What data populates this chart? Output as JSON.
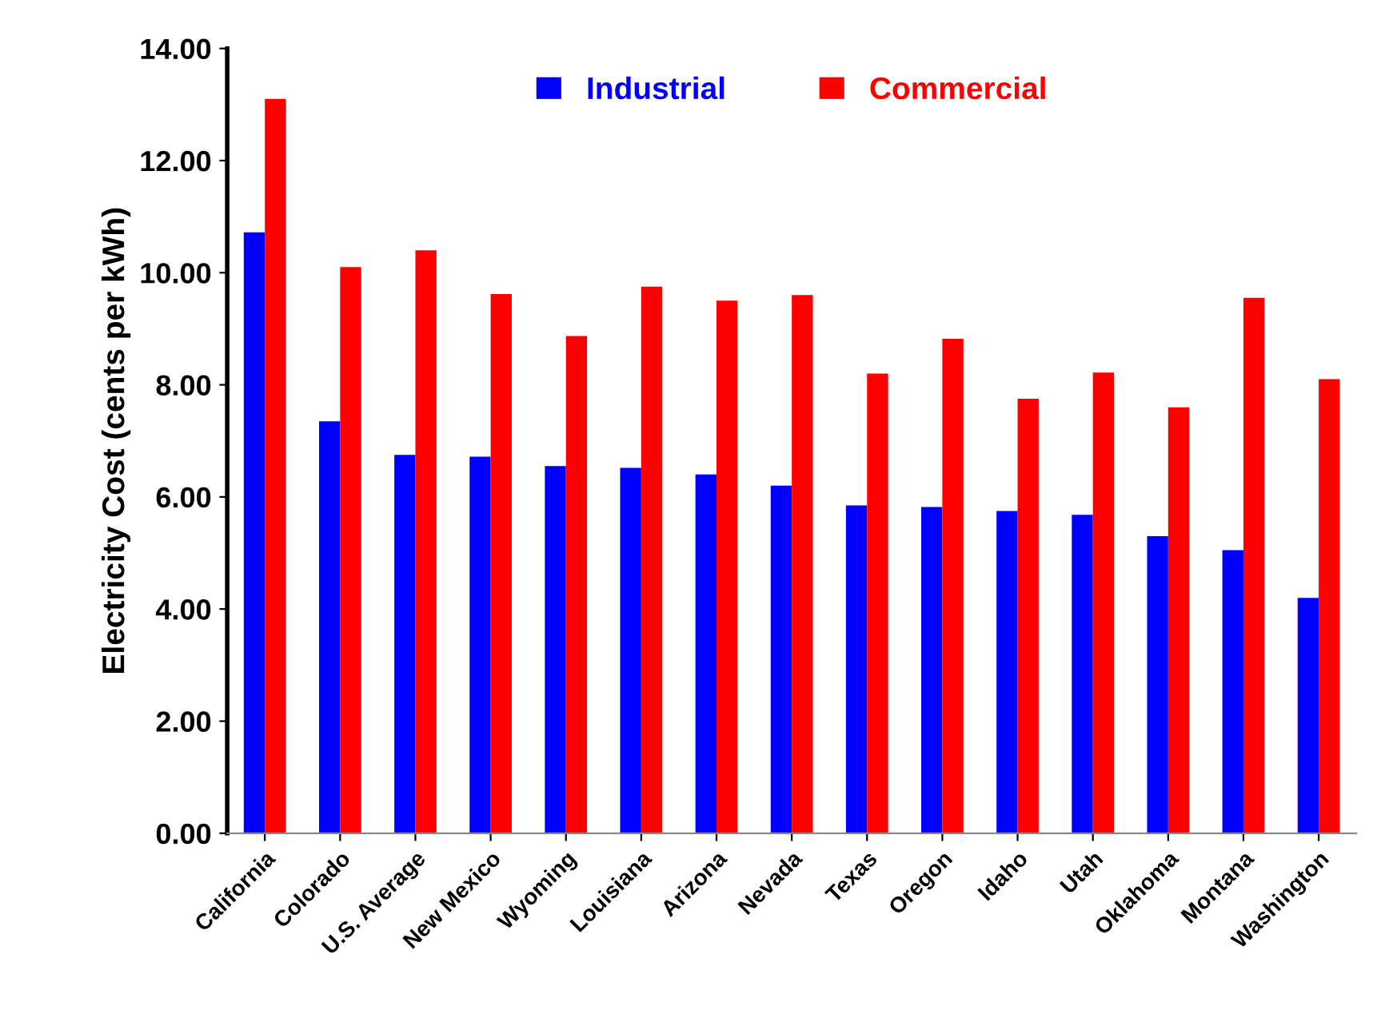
{
  "chart_data": {
    "type": "bar",
    "ylabel": "Electricity Cost (cents per kWh)",
    "categories": [
      "California",
      "Colorado",
      "U.S. Average",
      "New Mexico",
      "Wyoming",
      "Louisiana",
      "Arizona",
      "Nevada",
      "Texas",
      "Oregon",
      "Idaho",
      "Utah",
      "Oklahoma",
      "Montana",
      "Washington"
    ],
    "series": [
      {
        "name": "Industrial",
        "color": "#0000ff",
        "values": [
          10.72,
          7.35,
          6.75,
          6.72,
          6.55,
          6.52,
          6.4,
          6.2,
          5.85,
          5.82,
          5.75,
          5.68,
          5.3,
          5.05,
          4.2
        ]
      },
      {
        "name": "Commercial",
        "color": "#ff0000",
        "values": [
          13.1,
          10.1,
          10.4,
          9.62,
          8.87,
          9.75,
          9.5,
          9.6,
          8.2,
          8.82,
          7.75,
          8.22,
          7.6,
          9.55,
          8.1
        ]
      }
    ],
    "ylim": [
      0,
      14
    ],
    "yticks": [
      {
        "value": 0,
        "label": "0.00"
      },
      {
        "value": 2,
        "label": "2.00"
      },
      {
        "value": 4,
        "label": "4.00"
      },
      {
        "value": 6,
        "label": "6.00"
      },
      {
        "value": 8,
        "label": "8.00"
      },
      {
        "value": 10,
        "label": "10.00"
      },
      {
        "value": 12,
        "label": "12.00"
      },
      {
        "value": 14,
        "label": "14.00"
      }
    ],
    "grid": false,
    "legend": "top"
  }
}
